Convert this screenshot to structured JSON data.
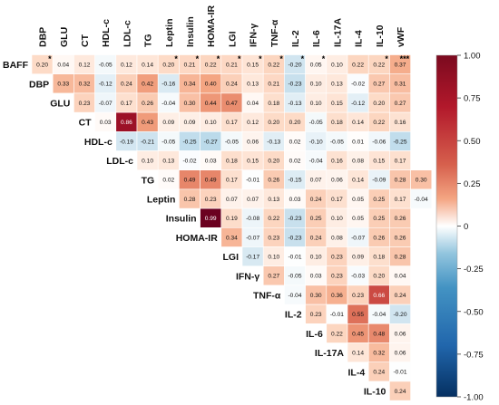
{
  "chart_data": {
    "type": "heatmap",
    "title": "",
    "columns": [
      "DBP",
      "GLU",
      "CT",
      "HDL-c",
      "LDL-c",
      "TG",
      "Leptin",
      "Insulin",
      "HOMA-IR",
      "LGI",
      "IFN-γ",
      "TNF-α",
      "IL-2",
      "IL-6",
      "IL-17A",
      "IL-4",
      "IL-10",
      "vWF"
    ],
    "rows": [
      {
        "label": "BAFF",
        "values": [
          "0.20",
          "0.04",
          "0.12",
          "-0.05",
          "0.12",
          "0.14",
          "0.20",
          "0.21",
          "0.22",
          "0.21",
          "0.15",
          "0.22",
          "-0.20",
          "0.05",
          "0.10",
          "0.22",
          "0.22",
          "0.37"
        ],
        "stars": [
          "*",
          "",
          "",
          "",
          "",
          "",
          "*",
          "*",
          "*",
          "*",
          "*",
          "*",
          "*",
          "*",
          "",
          "",
          "*",
          "***"
        ]
      },
      {
        "label": "DBP",
        "values": [
          "0.33",
          "0.32",
          "-0.12",
          "0.24",
          "0.42",
          "-0.16",
          "0.34",
          "0.40",
          "0.24",
          "0.13",
          "0.21",
          "-0.23",
          "0.10",
          "0.13",
          "-0.02",
          "0.27",
          "0.31"
        ],
        "stars": []
      },
      {
        "label": "GLU",
        "values": [
          "0.23",
          "-0.07",
          "0.17",
          "0.26",
          "-0.04",
          "0.30",
          "0.44",
          "0.47",
          "0.04",
          "0.18",
          "-0.13",
          "0.10",
          "0.15",
          "-0.12",
          "0.20",
          "0.27"
        ],
        "stars": []
      },
      {
        "label": "CT",
        "values": [
          "0.03",
          "0.86",
          "0.43",
          "0.09",
          "0.09",
          "0.10",
          "0.17",
          "0.12",
          "0.20",
          "0.20",
          "-0.05",
          "0.18",
          "0.14",
          "0.22",
          "0.16"
        ],
        "stars": []
      },
      {
        "label": "HDL-c",
        "values": [
          "-0.19",
          "-0.21",
          "-0.05",
          "-0.25",
          "-0.27",
          "-0.05",
          "0.06",
          "-0.13",
          "0.02",
          "-0.10",
          "-0.05",
          "0.01",
          "-0.06",
          "-0.25"
        ],
        "stars": []
      },
      {
        "label": "LDL-c",
        "values": [
          "0.10",
          "0.13",
          "-0.02",
          "0.03",
          "0.18",
          "0.15",
          "0.20",
          "0.02",
          "-0.04",
          "0.16",
          "0.08",
          "0.15",
          "0.17"
        ],
        "stars": []
      },
      {
        "label": "TG",
        "values": [
          "0.02",
          "0.49",
          "0.49",
          "0.17",
          "-0.01",
          "0.26",
          "-0.15",
          "0.07",
          "0.06",
          "0.14",
          "-0.09",
          "0.28",
          "0.30"
        ],
        "stars": []
      },
      {
        "label": "Leptin",
        "values": [
          "0.28",
          "0.23",
          "0.07",
          "0.07",
          "0.13",
          "0.03",
          "0.24",
          "0.17",
          "0.05",
          "0.25",
          "0.17",
          "-0.04"
        ],
        "stars": []
      },
      {
        "label": "Insulin",
        "values": [
          "0.99",
          "0.19",
          "-0.08",
          "0.22",
          "-0.23",
          "0.25",
          "0.10",
          "0.05",
          "0.25",
          "0.26"
        ],
        "stars": []
      },
      {
        "label": "HOMA-IR",
        "values": [
          "0.34",
          "-0.07",
          "0.23",
          "-0.23",
          "0.24",
          "0.08",
          "-0.07",
          "0.26",
          "0.26"
        ],
        "stars": []
      },
      {
        "label": "LGI",
        "values": [
          "-0.17",
          "0.10",
          "-0.01",
          "0.10",
          "0.23",
          "0.09",
          "0.18",
          "0.28"
        ],
        "stars": []
      },
      {
        "label": "IFN-γ",
        "values": [
          "0.27",
          "-0.05",
          "0.03",
          "0.23",
          "-0.03",
          "0.20",
          "0.04"
        ],
        "stars": []
      },
      {
        "label": "TNF-α",
        "values": [
          "-0.04",
          "0.30",
          "0.36",
          "0.23",
          "0.66",
          "0.24"
        ],
        "stars": []
      },
      {
        "label": "IL-2",
        "values": [
          "0.23",
          "-0.01",
          "0.55",
          "-0.04",
          "-0.20"
        ],
        "stars": []
      },
      {
        "label": "IL-6",
        "values": [
          "0.22",
          "0.45",
          "0.48",
          "0.06"
        ],
        "stars": []
      },
      {
        "label": "IL-17A",
        "values": [
          "0.14",
          "0.32",
          "0.06"
        ],
        "stars": []
      },
      {
        "label": "IL-4",
        "values": [
          "0.24",
          "-0.01"
        ],
        "stars": []
      },
      {
        "label": "IL-10",
        "values": [
          "0.24"
        ],
        "stars": []
      }
    ],
    "colorbar": {
      "min": -1.0,
      "max": 1.0,
      "ticks": [
        "1.00",
        "0.75",
        "0.50",
        "0.25",
        "0",
        "-0.25",
        "-0.50",
        "-0.75",
        "-1.00"
      ],
      "colors": {
        "negative": "#053061",
        "neutral": "#ffffff",
        "positive": "#800020"
      }
    }
  }
}
